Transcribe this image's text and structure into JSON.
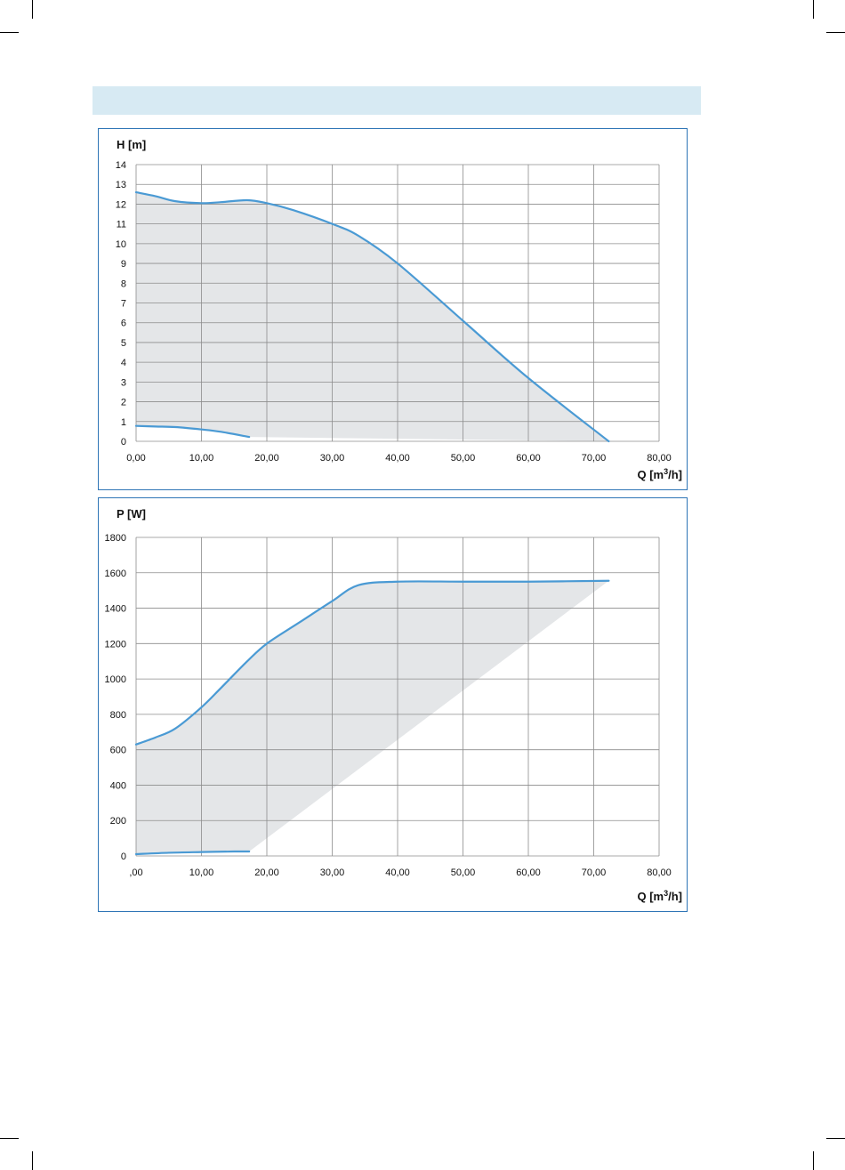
{
  "header": {
    "title": ""
  },
  "chart_data": [
    {
      "type": "area",
      "title": "",
      "ylabel": "H [m]",
      "xlabel_prefix": "Q [m",
      "xlabel_sup": "3",
      "xlabel_suffix": "/h]",
      "xlim": [
        0,
        80
      ],
      "ylim": [
        0,
        14
      ],
      "x_ticks": [
        "0,00",
        "10,00",
        "20,00",
        "30,00",
        "40,00",
        "50,00",
        "60,00",
        "70,00",
        "80,00"
      ],
      "y_ticks": [
        "0",
        "1",
        "2",
        "3",
        "4",
        "5",
        "6",
        "7",
        "8",
        "9",
        "10",
        "11",
        "12",
        "13",
        "14"
      ],
      "grid": true,
      "line_color": "#4a9ad4",
      "fill_color": "#e4e6e8",
      "series": [
        {
          "role": "max",
          "points": [
            [
              0,
              12.6
            ],
            [
              3,
              12.4
            ],
            [
              6,
              12.15
            ],
            [
              10,
              12.05
            ],
            [
              13,
              12.1
            ],
            [
              17,
              12.2
            ],
            [
              20,
              12.05
            ],
            [
              24,
              11.7
            ],
            [
              30,
              11
            ],
            [
              34,
              10.4
            ],
            [
              40,
              9
            ],
            [
              50,
              6.1
            ],
            [
              60,
              3.2
            ],
            [
              72.3,
              0
            ]
          ]
        },
        {
          "role": "min",
          "points": [
            [
              0,
              0.78
            ],
            [
              3,
              0.75
            ],
            [
              6,
              0.72
            ],
            [
              10,
              0.6
            ],
            [
              13,
              0.48
            ],
            [
              17.3,
              0.22
            ]
          ]
        }
      ]
    },
    {
      "type": "area",
      "title": "",
      "ylabel": "P [W]",
      "xlabel_prefix": "Q [m",
      "xlabel_sup": "3",
      "xlabel_suffix": "/h]",
      "xlim": [
        0,
        80
      ],
      "ylim": [
        0,
        1800
      ],
      "x_ticks": [
        ",00",
        "10,00",
        "20,00",
        "30,00",
        "40,00",
        "50,00",
        "60,00",
        "70,00",
        "80,00"
      ],
      "y_ticks": [
        "0",
        "200",
        "400",
        "600",
        "800",
        "1000",
        "1200",
        "1400",
        "1600",
        "1800"
      ],
      "grid": true,
      "line_color": "#4a9ad4",
      "fill_color": "#e4e6e8",
      "series": [
        {
          "role": "max",
          "points": [
            [
              0,
              630
            ],
            [
              3,
              670
            ],
            [
              6,
              720
            ],
            [
              10,
              840
            ],
            [
              13,
              950
            ],
            [
              17,
              1100
            ],
            [
              20,
              1200
            ],
            [
              25,
              1320
            ],
            [
              30,
              1440
            ],
            [
              34,
              1530
            ],
            [
              40,
              1550
            ],
            [
              50,
              1550
            ],
            [
              60,
              1550
            ],
            [
              72.3,
              1555
            ]
          ]
        },
        {
          "role": "min",
          "points": [
            [
              0,
              10
            ],
            [
              5,
              18
            ],
            [
              10,
              22
            ],
            [
              15,
              25
            ],
            [
              17.3,
              25
            ]
          ]
        }
      ]
    }
  ]
}
